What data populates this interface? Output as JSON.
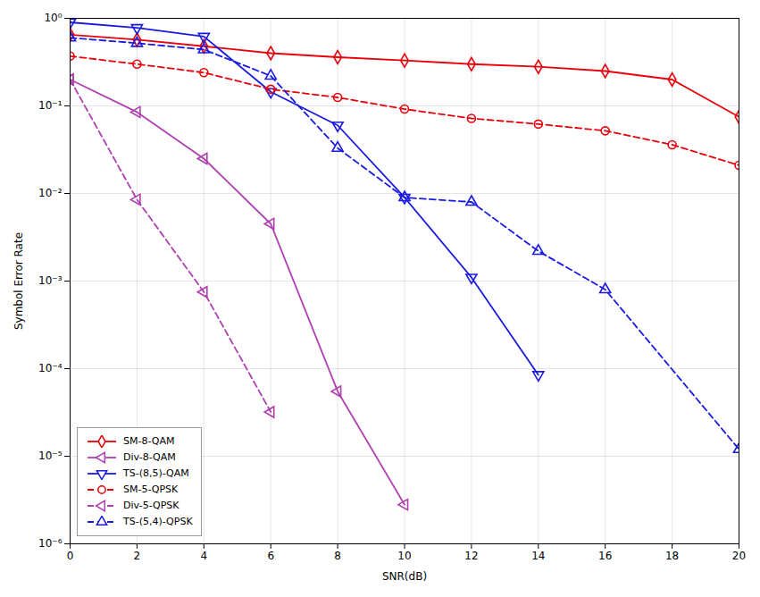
{
  "chart_data": {
    "type": "line",
    "x": [
      0,
      2,
      4,
      6,
      8,
      10,
      12,
      14,
      16,
      18,
      20
    ],
    "series": [
      {
        "name": "SM-8-QAM",
        "color": "#E8000A",
        "marker": "diamond",
        "line_style": "solid",
        "values": [
          0.65,
          0.57,
          0.48,
          0.4,
          0.36,
          0.33,
          0.3,
          0.28,
          0.25,
          0.2,
          0.075
        ]
      },
      {
        "name": "Div-8-QAM",
        "color": "#B040B0",
        "marker": "triangle-left",
        "line_style": "solid",
        "values": [
          0.2,
          0.085,
          0.025,
          0.0045,
          5.5e-05,
          2.8e-06,
          null,
          null,
          null,
          null,
          null
        ]
      },
      {
        "name": "TS-(8,5)-QAM",
        "color": "#1A1AE0",
        "marker": "triangle-down",
        "line_style": "solid",
        "values": [
          0.9,
          0.78,
          0.62,
          0.145,
          0.06,
          0.009,
          0.0011,
          8.5e-05,
          null,
          null,
          null
        ]
      },
      {
        "name": "SM-5-QPSK",
        "color": "#E8000A",
        "marker": "circle",
        "line_style": "dashed",
        "values": [
          0.37,
          0.3,
          0.24,
          0.155,
          0.125,
          0.092,
          0.072,
          0.062,
          0.052,
          0.036,
          0.021
        ]
      },
      {
        "name": "Div-5-QPSK",
        "color": "#B040B0",
        "marker": "triangle-left",
        "line_style": "dashed",
        "values": [
          0.2,
          0.0085,
          0.00075,
          3.2e-05,
          null,
          null,
          null,
          null,
          null,
          null,
          null
        ]
      },
      {
        "name": "TS-(5,4)-QPSK",
        "color": "#1A1AE0",
        "marker": "triangle-up",
        "line_style": "dashed",
        "values": [
          0.6,
          0.52,
          0.44,
          0.22,
          0.033,
          0.009,
          0.008,
          0.0022,
          0.0008,
          null,
          1.2e-05
        ]
      }
    ],
    "xlabel": "SNR(dB)",
    "ylabel": "Symbol Error Rate",
    "xlim": [
      0,
      20
    ],
    "xticks": [
      0,
      2,
      4,
      6,
      8,
      10,
      12,
      14,
      16,
      18,
      20
    ],
    "ylim": [
      1e-06,
      1
    ],
    "yticks": [
      {
        "value": 1e-06,
        "label": "10⁻⁶"
      },
      {
        "value": 1e-05,
        "label": "10⁻⁵"
      },
      {
        "value": 0.0001,
        "label": "10⁻⁴"
      },
      {
        "value": 0.001,
        "label": "10⁻³"
      },
      {
        "value": 0.01,
        "label": "10⁻²"
      },
      {
        "value": 0.1,
        "label": "10⁻¹"
      },
      {
        "value": 1,
        "label": "10⁰"
      }
    ],
    "log": "y",
    "grid": true,
    "legend": "lower left"
  }
}
